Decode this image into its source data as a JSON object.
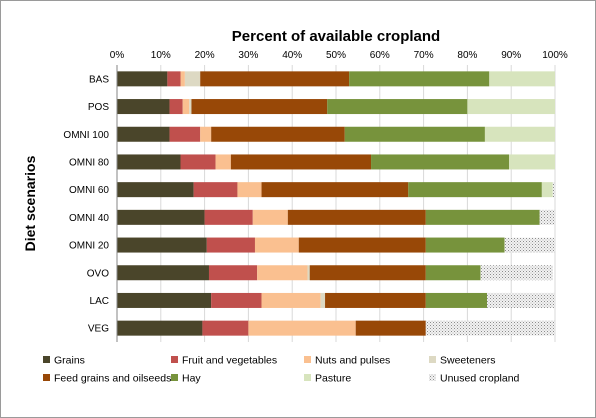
{
  "chart_data": {
    "type": "bar",
    "orientation": "horizontal",
    "stacked": true,
    "title": "Percent of available cropland",
    "xlabel": "",
    "ylabel": "Diet scenarios",
    "xlim": [
      0,
      100
    ],
    "x_ticks": [
      "0%",
      "10%",
      "20%",
      "30%",
      "40%",
      "50%",
      "60%",
      "70%",
      "80%",
      "90%",
      "100%"
    ],
    "x_axis_position": "top",
    "grid": true,
    "legend_position": "bottom",
    "categories": [
      "BAS",
      "POS",
      "OMNI 100",
      "OMNI 80",
      "OMNI 60",
      "OMNI 40",
      "OMNI 20",
      "OVO",
      "LAC",
      "VEG"
    ],
    "series": [
      {
        "name": "Grains",
        "color": "#4a452a",
        "pattern": "solid",
        "values": [
          11.5,
          12,
          12,
          14.5,
          17.5,
          20,
          20.5,
          21,
          21.5,
          19.5
        ]
      },
      {
        "name": "Fruit and vegetables",
        "color": "#c0504d",
        "pattern": "solid",
        "values": [
          3,
          3,
          7,
          8,
          10,
          11,
          11,
          11,
          11.5,
          10.5
        ]
      },
      {
        "name": "Nuts and pulses",
        "color": "#fac090",
        "pattern": "solid",
        "values": [
          1,
          1.5,
          2.5,
          3.5,
          5.5,
          8,
          10,
          11.5,
          13.5,
          24.5
        ]
      },
      {
        "name": "Sweeteners",
        "color": "#ddd9c3",
        "pattern": "solid",
        "values": [
          3.5,
          0.5,
          0,
          0,
          0,
          0,
          0,
          0.5,
          1,
          0
        ]
      },
      {
        "name": "Feed grains and oilseeds",
        "color": "#984807",
        "pattern": "solid",
        "values": [
          34,
          31,
          30.5,
          32,
          33.5,
          31.5,
          29,
          26.5,
          23,
          16
        ]
      },
      {
        "name": "Hay",
        "color": "#77933c",
        "pattern": "solid",
        "values": [
          32,
          32,
          32,
          31.5,
          30.5,
          26,
          18,
          12.5,
          14,
          0
        ]
      },
      {
        "name": "Pasture",
        "color": "#d7e4bd",
        "pattern": "solid",
        "values": [
          15,
          20,
          16,
          10.5,
          2.5,
          0,
          0,
          0,
          0,
          0
        ]
      },
      {
        "name": "Unused cropland",
        "color": "#d9d9d9",
        "pattern": "dotted",
        "values": [
          0,
          0,
          0,
          0,
          0.5,
          3.5,
          11.5,
          16.5,
          15.5,
          29.5
        ]
      }
    ]
  }
}
